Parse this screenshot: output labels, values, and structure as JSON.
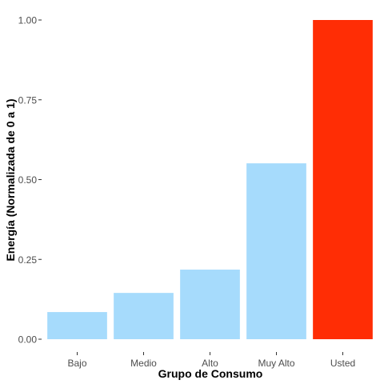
{
  "chart_data": {
    "type": "bar",
    "title": "",
    "xlabel": "Grupo de Consumo",
    "ylabel": "Energía (Normalizada de 0 a 1)",
    "categories": [
      "Bajo",
      "Medio",
      "Alto",
      "Muy Alto",
      "Usted"
    ],
    "values": [
      0.085,
      0.145,
      0.218,
      0.551,
      1.0
    ],
    "colors": [
      "#a6dbfc",
      "#a6dbfc",
      "#a6dbfc",
      "#a6dbfc",
      "#ff2d05"
    ],
    "ylim": [
      0,
      1.0
    ],
    "yticks": [
      0,
      0.25,
      0.5,
      0.75,
      1.0
    ],
    "ytick_labels": [
      "0.00",
      "0.25",
      "0.50",
      "0.75",
      "1.00"
    ],
    "grid": false,
    "legend": "none"
  }
}
